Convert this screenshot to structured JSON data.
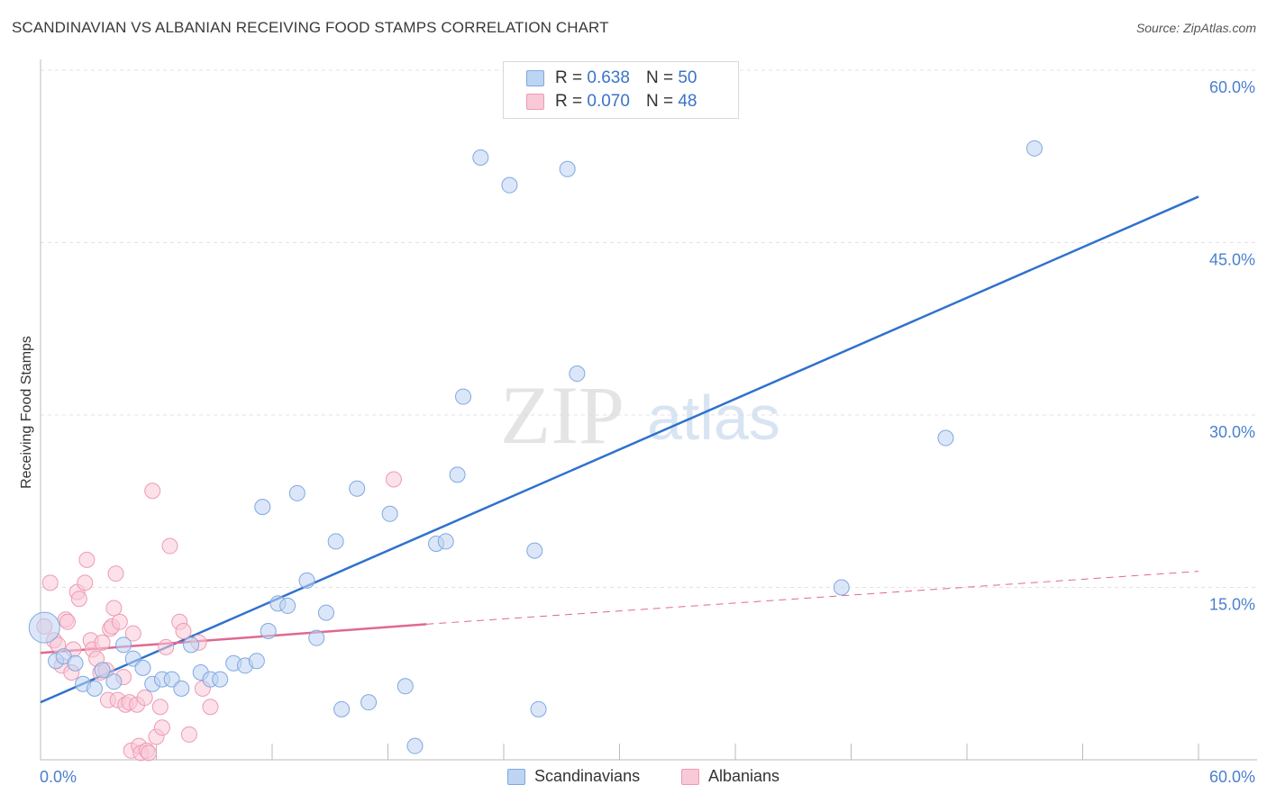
{
  "title": "SCANDINAVIAN VS ALBANIAN RECEIVING FOOD STAMPS CORRELATION CHART",
  "source": "Source: ZipAtlas.com",
  "watermark": {
    "zip": "ZIP",
    "atlas": "atlas"
  },
  "legend": {
    "items": [
      {
        "r_label": "R =",
        "r_value": "0.638",
        "n_label": "N =",
        "n_value": "50"
      },
      {
        "r_label": "R =",
        "r_value": "0.070",
        "n_label": "N =",
        "n_value": "48"
      }
    ]
  },
  "colors": {
    "blue_fill": "#bdd4f3",
    "blue_stroke": "#7fa8e0",
    "blue_line": "#2f72cc",
    "pink_fill": "#f9c9d7",
    "pink_stroke": "#ee9ab4",
    "pink_line": "#e06890",
    "grid": "#e3e3e3",
    "axis": "#bbbbbb",
    "tick_text": "#4a80cf"
  },
  "chart_data": {
    "type": "scatter",
    "title": "SCANDINAVIAN VS ALBANIAN RECEIVING FOOD STAMPS CORRELATION CHART",
    "xlabel": "",
    "ylabel": "Receiving Food Stamps",
    "xlim": [
      0,
      60
    ],
    "ylim": [
      0,
      60
    ],
    "x_tick_labels": [
      "0.0%",
      "60.0%"
    ],
    "y_tick_labels": [
      "15.0%",
      "30.0%",
      "45.0%",
      "60.0%"
    ],
    "y_ticks": [
      15,
      30,
      45,
      60
    ],
    "grid": true,
    "legend_position": "top-center",
    "series": [
      {
        "name": "Scandinavians",
        "color": "#bdd4f3",
        "stroke": "#7fa8e0",
        "points": [
          [
            0.2,
            11.5
          ],
          [
            0.8,
            8.6
          ],
          [
            1.2,
            9.0
          ],
          [
            1.8,
            8.4
          ],
          [
            2.2,
            6.6
          ],
          [
            2.8,
            6.2
          ],
          [
            3.2,
            7.8
          ],
          [
            3.8,
            6.8
          ],
          [
            4.3,
            10.0
          ],
          [
            4.8,
            8.8
          ],
          [
            5.3,
            8.0
          ],
          [
            5.8,
            6.6
          ],
          [
            6.3,
            7.0
          ],
          [
            6.8,
            7.0
          ],
          [
            7.3,
            6.2
          ],
          [
            7.8,
            10.0
          ],
          [
            8.3,
            7.6
          ],
          [
            8.8,
            7.0
          ],
          [
            9.3,
            7.0
          ],
          [
            10.0,
            8.4
          ],
          [
            10.6,
            8.2
          ],
          [
            11.2,
            8.6
          ],
          [
            11.5,
            22.0
          ],
          [
            11.8,
            11.2
          ],
          [
            12.3,
            13.6
          ],
          [
            12.8,
            13.4
          ],
          [
            13.3,
            23.2
          ],
          [
            13.8,
            15.6
          ],
          [
            14.3,
            10.6
          ],
          [
            14.8,
            12.8
          ],
          [
            15.3,
            19.0
          ],
          [
            15.6,
            4.4
          ],
          [
            16.4,
            23.6
          ],
          [
            17.0,
            5.0
          ],
          [
            18.1,
            21.4
          ],
          [
            18.9,
            6.4
          ],
          [
            19.4,
            1.2
          ],
          [
            20.5,
            18.8
          ],
          [
            21.0,
            19.0
          ],
          [
            21.6,
            24.8
          ],
          [
            21.9,
            31.6
          ],
          [
            22.8,
            52.4
          ],
          [
            24.3,
            50.0
          ],
          [
            25.6,
            18.2
          ],
          [
            25.8,
            4.4
          ],
          [
            27.3,
            51.4
          ],
          [
            27.8,
            33.6
          ],
          [
            41.5,
            15.0
          ],
          [
            46.9,
            28.0
          ],
          [
            51.5,
            53.2
          ]
        ]
      },
      {
        "name": "Albanians",
        "color": "#f9c9d7",
        "stroke": "#ee9ab4",
        "points": [
          [
            0.2,
            11.6
          ],
          [
            0.5,
            15.4
          ],
          [
            0.7,
            10.4
          ],
          [
            0.9,
            10.0
          ],
          [
            1.1,
            8.2
          ],
          [
            1.3,
            12.2
          ],
          [
            1.4,
            12.0
          ],
          [
            1.6,
            7.6
          ],
          [
            1.7,
            9.6
          ],
          [
            1.9,
            14.6
          ],
          [
            2.0,
            14.0
          ],
          [
            2.3,
            15.4
          ],
          [
            2.4,
            17.4
          ],
          [
            2.6,
            10.4
          ],
          [
            2.7,
            9.6
          ],
          [
            2.9,
            8.8
          ],
          [
            3.1,
            7.6
          ],
          [
            3.2,
            10.2
          ],
          [
            3.4,
            7.8
          ],
          [
            3.5,
            5.2
          ],
          [
            3.6,
            11.4
          ],
          [
            3.7,
            11.6
          ],
          [
            3.8,
            13.2
          ],
          [
            3.9,
            16.2
          ],
          [
            4.0,
            5.2
          ],
          [
            4.1,
            12.0
          ],
          [
            4.3,
            7.2
          ],
          [
            4.4,
            4.8
          ],
          [
            4.6,
            5.0
          ],
          [
            4.7,
            0.8
          ],
          [
            4.8,
            11.0
          ],
          [
            5.0,
            4.8
          ],
          [
            5.1,
            1.2
          ],
          [
            5.2,
            0.6
          ],
          [
            5.4,
            5.4
          ],
          [
            5.5,
            0.8
          ],
          [
            5.6,
            0.6
          ],
          [
            5.8,
            23.4
          ],
          [
            6.0,
            2.0
          ],
          [
            6.2,
            4.6
          ],
          [
            6.3,
            2.8
          ],
          [
            6.5,
            9.8
          ],
          [
            6.7,
            18.6
          ],
          [
            7.2,
            12.0
          ],
          [
            7.4,
            11.2
          ],
          [
            7.7,
            2.2
          ],
          [
            8.4,
            6.2
          ],
          [
            8.8,
            4.6
          ]
        ],
        "extra_points": [
          [
            18.3,
            24.4
          ],
          [
            8.2,
            10.2
          ]
        ]
      }
    ],
    "trend_lines": [
      {
        "series": "Scandinavians",
        "from": [
          0,
          5.0
        ],
        "to": [
          60,
          49.0
        ],
        "style": "solid"
      },
      {
        "series": "Albanians",
        "from": [
          0,
          9.3
        ],
        "to": [
          20,
          11.8
        ],
        "style": "solid"
      },
      {
        "series": "Albanians",
        "from": [
          20,
          11.8
        ],
        "to": [
          60,
          16.4
        ],
        "style": "dashed"
      }
    ]
  }
}
